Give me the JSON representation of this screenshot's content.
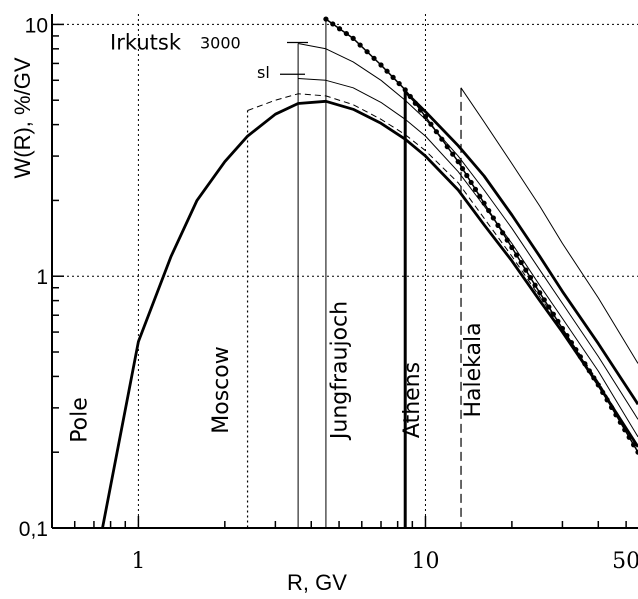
{
  "chart_data": {
    "type": "line",
    "xlabel": "R, GV",
    "ylabel": "W(R), %/GV",
    "x_scale": "log",
    "y_scale": "log",
    "xlim": [
      0.5,
      55
    ],
    "ylim": [
      0.1,
      11
    ],
    "x_ticks": [
      {
        "value": 1,
        "label": "1"
      },
      {
        "value": 10,
        "label": "10"
      },
      {
        "value": 50,
        "label": "50"
      }
    ],
    "y_ticks": [
      {
        "value": 0.1,
        "label": "0,1"
      },
      {
        "value": 1,
        "label": "1"
      },
      {
        "value": 10,
        "label": "10"
      }
    ],
    "grid": "dotted at major decades",
    "cutoff_markers": [
      {
        "name": "Pole",
        "x": 0.5,
        "style": "none"
      },
      {
        "name": "Moscow",
        "x": 2.4,
        "style": "dotted"
      },
      {
        "name": "Jungfraujoch",
        "x": 4.5,
        "style": "thin-solid"
      },
      {
        "name": "Athens",
        "x": 8.5,
        "style": "thick-solid"
      },
      {
        "name": "Halekala",
        "x": 13.3,
        "style": "dashed"
      }
    ],
    "annotations": [
      {
        "text": "Irkutsk",
        "x": 2.4,
        "y": 8.4
      },
      {
        "text": "3000",
        "x": 3.3,
        "y": 8.4
      },
      {
        "text": "sl",
        "x": 3.15,
        "y": 6.4
      }
    ],
    "series": [
      {
        "style": "thick",
        "x": [
          0.75,
          1.0,
          1.3,
          1.6,
          2.0,
          2.4,
          3.0,
          3.6,
          4.5,
          5.6,
          7.0,
          8.5,
          10,
          13,
          16,
          20,
          25,
          30,
          40,
          55
        ],
        "y": [
          0.1,
          0.55,
          1.2,
          2.0,
          2.85,
          3.6,
          4.4,
          4.85,
          4.95,
          4.6,
          4.05,
          3.5,
          3.0,
          2.2,
          1.6,
          1.15,
          0.8,
          0.6,
          0.37,
          0.21
        ]
      },
      {
        "style": "dashed",
        "x": [
          2.4,
          3.0,
          3.6,
          4.5,
          5.6,
          7.0,
          8.5,
          10,
          13,
          16,
          20,
          25,
          30,
          40,
          55
        ],
        "y": [
          4.55,
          5.0,
          5.3,
          5.2,
          4.8,
          4.2,
          3.65,
          3.15,
          2.35,
          1.7,
          1.2,
          0.83,
          0.62,
          0.38,
          0.21
        ]
      },
      {
        "style": "thin",
        "x": [
          3.6,
          4.5,
          5.6,
          7.0,
          8.5,
          10,
          13,
          16,
          20,
          25,
          30,
          40,
          55
        ],
        "y": [
          6.1,
          6.0,
          5.6,
          4.9,
          4.2,
          3.6,
          2.6,
          1.9,
          1.35,
          0.92,
          0.68,
          0.42,
          0.23
        ]
      },
      {
        "style": "thin",
        "x": [
          3.6,
          4.5,
          5.6,
          7.0,
          8.5,
          10,
          13,
          16,
          20,
          25,
          30,
          40,
          55
        ],
        "y": [
          8.4,
          8.0,
          7.1,
          6.0,
          5.0,
          4.2,
          3.0,
          2.2,
          1.55,
          1.06,
          0.78,
          0.48,
          0.27
        ]
      },
      {
        "style": "dotted-thick",
        "x": [
          4.5,
          5.6,
          7.0,
          8.5,
          10,
          13,
          16,
          20,
          25,
          30,
          40,
          55
        ],
        "y": [
          10.5,
          8.8,
          6.9,
          5.5,
          4.3,
          2.85,
          1.95,
          1.3,
          0.86,
          0.62,
          0.37,
          0.2
        ]
      },
      {
        "style": "thick",
        "x": [
          8.5,
          10,
          13,
          16,
          20,
          25,
          30,
          40,
          55
        ],
        "y": [
          5.4,
          4.5,
          3.3,
          2.5,
          1.75,
          1.2,
          0.87,
          0.54,
          0.31
        ]
      },
      {
        "style": "thin",
        "x": [
          13.3,
          16,
          20,
          25,
          30,
          40,
          55
        ],
        "y": [
          5.6,
          4.1,
          2.8,
          1.9,
          1.35,
          0.82,
          0.45
        ]
      }
    ]
  }
}
